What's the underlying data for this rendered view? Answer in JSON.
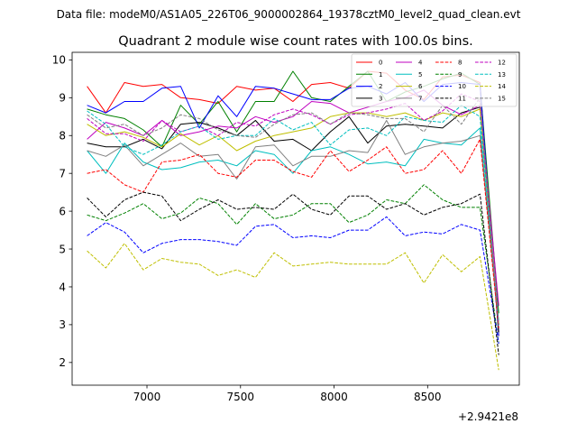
{
  "figure": {
    "suptitle": "Data file: modeM0/AS1A05_226T06_9000002864_19378cztM0_level2_quad_clean.evt"
  },
  "chart_data": {
    "type": "line",
    "title": "Quadrant 2 module wise count rates with 100.0s bins.",
    "xlabel": "",
    "ylabel": "",
    "x_offset_label": "+2.9421e8",
    "xlim": [
      6600,
      8990
    ],
    "ylim": [
      1.4,
      10.2
    ],
    "xticks": [
      7000,
      7500,
      8000,
      8500
    ],
    "yticks": [
      2,
      3,
      4,
      5,
      6,
      7,
      8,
      9,
      10
    ],
    "grid": false,
    "legend_position": "top-right",
    "x": [
      6680,
      6780,
      6880,
      6980,
      7080,
      7180,
      7280,
      7380,
      7480,
      7580,
      7680,
      7780,
      7880,
      7980,
      8080,
      8180,
      8280,
      8380,
      8480,
      8580,
      8680,
      8780,
      8880
    ],
    "series": [
      {
        "name": "0",
        "color": "#ff0000",
        "dash": "solid",
        "values": [
          9.3,
          8.6,
          9.4,
          9.3,
          9.35,
          9.0,
          8.95,
          8.85,
          9.3,
          9.2,
          9.25,
          8.9,
          9.35,
          9.4,
          9.25,
          9.7,
          9.65,
          9.2,
          8.95,
          9.55,
          9.6,
          9.4,
          2.7
        ]
      },
      {
        "name": "1",
        "color": "#008000",
        "dash": "solid",
        "values": [
          8.7,
          8.55,
          8.45,
          8.15,
          7.7,
          8.8,
          8.3,
          8.9,
          8.1,
          8.9,
          8.9,
          9.7,
          9.0,
          8.9,
          9.3,
          9.7,
          8.9,
          9.15,
          9.3,
          9.5,
          9.65,
          9.35,
          3.3
        ]
      },
      {
        "name": "2",
        "color": "#0000ff",
        "dash": "solid",
        "values": [
          8.8,
          8.6,
          8.9,
          8.9,
          9.25,
          9.3,
          8.2,
          9.05,
          8.5,
          9.3,
          9.25,
          9.1,
          8.95,
          8.95,
          9.25,
          9.3,
          9.1,
          9.4,
          8.9,
          9.35,
          9.4,
          9.35,
          2.7
        ]
      },
      {
        "name": "3",
        "color": "#000000",
        "dash": "solid",
        "values": [
          7.8,
          7.7,
          7.7,
          7.9,
          7.65,
          8.3,
          8.35,
          8.2,
          8.0,
          8.4,
          7.85,
          7.9,
          7.6,
          8.1,
          8.5,
          7.8,
          8.25,
          8.3,
          8.25,
          8.2,
          8.6,
          8.75,
          2.8
        ]
      },
      {
        "name": "4",
        "color": "#bf00bf",
        "dash": "solid",
        "values": [
          7.9,
          8.35,
          8.2,
          8.0,
          8.4,
          8.0,
          8.1,
          8.25,
          8.2,
          8.5,
          8.35,
          8.5,
          8.9,
          8.85,
          8.6,
          8.75,
          8.9,
          9.0,
          9.2,
          8.8,
          8.55,
          8.8,
          3.5
        ]
      },
      {
        "name": "5",
        "color": "#00bfbf",
        "dash": "solid",
        "values": [
          7.6,
          7.0,
          7.8,
          7.3,
          7.1,
          7.15,
          7.3,
          7.35,
          7.2,
          7.6,
          7.5,
          7.0,
          7.6,
          7.7,
          7.5,
          7.25,
          7.3,
          7.2,
          7.9,
          7.8,
          7.75,
          8.2,
          2.9
        ]
      },
      {
        "name": "6",
        "color": "#bfbf00",
        "dash": "solid",
        "values": [
          8.3,
          8.0,
          8.1,
          7.95,
          7.7,
          8.05,
          7.75,
          8.0,
          7.6,
          7.85,
          8.0,
          8.1,
          8.2,
          8.5,
          8.6,
          8.6,
          8.5,
          8.6,
          8.4,
          8.6,
          8.5,
          8.7,
          3.0
        ]
      },
      {
        "name": "7",
        "color": "#808080",
        "dash": "solid",
        "values": [
          7.6,
          7.45,
          7.75,
          7.2,
          7.5,
          7.8,
          7.45,
          7.5,
          6.85,
          7.7,
          7.75,
          7.2,
          7.45,
          7.45,
          7.6,
          7.55,
          8.4,
          7.5,
          7.7,
          7.8,
          7.85,
          8.0,
          3.0
        ]
      },
      {
        "name": "8",
        "color": "#ff0000",
        "dash": "dashed",
        "values": [
          7.0,
          7.1,
          6.7,
          6.5,
          7.3,
          7.35,
          7.5,
          7.0,
          6.9,
          7.35,
          7.35,
          7.05,
          6.9,
          7.6,
          7.05,
          7.35,
          7.7,
          7.0,
          7.1,
          7.6,
          7.0,
          7.9,
          2.9
        ]
      },
      {
        "name": "9",
        "color": "#008000",
        "dash": "dashed",
        "values": [
          5.9,
          5.75,
          5.95,
          6.2,
          5.8,
          5.95,
          6.35,
          6.2,
          5.65,
          6.2,
          5.8,
          5.9,
          6.2,
          6.2,
          5.7,
          5.9,
          6.3,
          6.2,
          6.7,
          6.3,
          6.1,
          6.1,
          2.5
        ]
      },
      {
        "name": "10",
        "color": "#0000ff",
        "dash": "dashed",
        "values": [
          5.35,
          5.7,
          5.45,
          4.9,
          5.15,
          5.25,
          5.25,
          5.2,
          5.1,
          5.6,
          5.65,
          5.3,
          5.35,
          5.3,
          5.5,
          5.5,
          5.85,
          5.35,
          5.45,
          5.4,
          5.65,
          5.5,
          2.5
        ]
      },
      {
        "name": "11",
        "color": "#000000",
        "dash": "dashed",
        "values": [
          6.35,
          5.85,
          6.3,
          6.5,
          6.4,
          5.75,
          6.05,
          6.3,
          6.05,
          6.1,
          6.05,
          6.45,
          6.05,
          5.9,
          6.4,
          6.4,
          6.05,
          6.2,
          5.9,
          6.1,
          6.2,
          6.45,
          2.2
        ]
      },
      {
        "name": "12",
        "color": "#bf00bf",
        "dash": "dashed",
        "values": [
          8.45,
          8.05,
          8.05,
          7.85,
          8.4,
          8.1,
          8.25,
          8.0,
          8.35,
          8.25,
          8.55,
          8.7,
          8.55,
          8.3,
          8.55,
          8.6,
          8.7,
          8.85,
          8.4,
          8.65,
          9.1,
          8.9,
          3.0
        ]
      },
      {
        "name": "13",
        "color": "#00bfbf",
        "dash": "dashed",
        "values": [
          8.65,
          8.3,
          7.7,
          7.5,
          7.75,
          8.1,
          8.25,
          7.9,
          8.0,
          8.0,
          8.45,
          8.15,
          8.35,
          7.75,
          8.15,
          8.2,
          8.0,
          8.5,
          8.4,
          8.35,
          8.8,
          8.5,
          3.1
        ]
      },
      {
        "name": "14",
        "color": "#bfbf00",
        "dash": "dashed",
        "values": [
          4.95,
          4.5,
          5.15,
          4.45,
          4.75,
          4.65,
          4.6,
          4.3,
          4.45,
          4.25,
          4.9,
          4.55,
          4.6,
          4.65,
          4.6,
          4.6,
          4.6,
          4.9,
          4.1,
          4.85,
          4.4,
          4.8,
          1.8
        ]
      },
      {
        "name": "15",
        "color": "#808080",
        "dash": "dashed",
        "values": [
          8.55,
          8.2,
          8.3,
          8.0,
          8.2,
          8.55,
          8.45,
          8.15,
          8.0,
          7.95,
          8.3,
          8.55,
          8.6,
          8.3,
          8.6,
          8.55,
          8.45,
          8.45,
          8.1,
          8.8,
          8.3,
          9.0,
          3.0
        ]
      }
    ]
  }
}
